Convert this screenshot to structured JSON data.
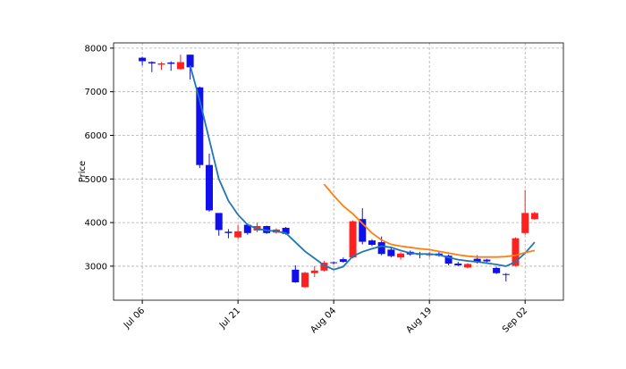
{
  "chart_data": {
    "type": "candlestick",
    "ylabel": "Price",
    "categories": [
      "Jul 06",
      null,
      null,
      null,
      null,
      null,
      null,
      null,
      null,
      null,
      "Jul 21",
      null,
      null,
      null,
      null,
      null,
      null,
      null,
      null,
      null,
      "Aug 04",
      null,
      null,
      null,
      null,
      null,
      null,
      null,
      null,
      null,
      "Aug 19",
      null,
      null,
      null,
      null,
      null,
      null,
      null,
      null,
      null,
      "Sep 02",
      null
    ],
    "open": [
      7780,
      7680,
      7620,
      7670,
      7520,
      7850,
      7100,
      5320,
      4220,
      3790,
      3660,
      3950,
      3820,
      3920,
      3770,
      3880,
      2920,
      2520,
      2840,
      2900,
      3090,
      3160,
      3200,
      4080,
      3590,
      3550,
      3380,
      3200,
      3330,
      3290,
      3250,
      3290,
      3240,
      3060,
      2970,
      3170,
      3150,
      2960,
      2820,
      3010,
      3760,
      4080
    ],
    "high": [
      7800,
      7700,
      7680,
      7700,
      7850,
      7850,
      7120,
      5580,
      4220,
      3850,
      3950,
      3980,
      3990,
      3930,
      3870,
      3900,
      3020,
      2870,
      3000,
      3120,
      3110,
      3200,
      4050,
      4330,
      3620,
      3680,
      3420,
      3320,
      3360,
      3330,
      3330,
      3330,
      3270,
      3100,
      3070,
      3250,
      3170,
      2990,
      2840,
      3660,
      4750,
      4250
    ],
    "low": [
      7600,
      7450,
      7500,
      7480,
      7500,
      7280,
      5250,
      4250,
      3700,
      3640,
      3620,
      3720,
      3780,
      3740,
      3750,
      3720,
      2620,
      2500,
      2750,
      2880,
      3040,
      3080,
      3180,
      3500,
      3460,
      3250,
      3200,
      3150,
      3240,
      3180,
      3210,
      3220,
      3020,
      3000,
      2950,
      3060,
      3090,
      2820,
      2650,
      2990,
      3720,
      4060
    ],
    "close": [
      7700,
      7650,
      7650,
      7640,
      7680,
      7560,
      5320,
      4280,
      3830,
      3760,
      3800,
      3760,
      3920,
      3760,
      3840,
      3740,
      2630,
      2850,
      2900,
      3080,
      3070,
      3100,
      4030,
      3560,
      3490,
      3280,
      3230,
      3290,
      3270,
      3260,
      3290,
      3240,
      3060,
      3020,
      3050,
      3090,
      3110,
      2840,
      2800,
      3640,
      4220,
      4220
    ],
    "up_color": "#ff2020",
    "down_color": "#1010ee",
    "series": [
      {
        "color": "#1f77b4",
        "values": [
          null,
          null,
          null,
          null,
          null,
          7600,
          6800,
          5900,
          5000,
          4500,
          4180,
          3950,
          3860,
          3820,
          3800,
          3760,
          3550,
          3340,
          3180,
          3020,
          2920,
          2990,
          3230,
          3330,
          3400,
          3460,
          3430,
          3360,
          3300,
          3280,
          3280,
          3260,
          3200,
          3150,
          3120,
          3100,
          3070,
          3040,
          3000,
          3100,
          3300,
          3550
        ]
      },
      {
        "color": "#ff7f0e",
        "values": [
          null,
          null,
          null,
          null,
          null,
          null,
          null,
          null,
          null,
          null,
          null,
          null,
          null,
          null,
          null,
          null,
          null,
          null,
          null,
          4880,
          4620,
          4380,
          4200,
          3980,
          3760,
          3600,
          3500,
          3460,
          3430,
          3400,
          3380,
          3340,
          3300,
          3260,
          3230,
          3210,
          3210,
          3210,
          3220,
          3250,
          3310,
          3360
        ]
      }
    ],
    "ylim": [
      2220,
      8120
    ],
    "yticks": [
      3000,
      4000,
      5000,
      6000,
      7000,
      8000
    ],
    "grid": true
  }
}
